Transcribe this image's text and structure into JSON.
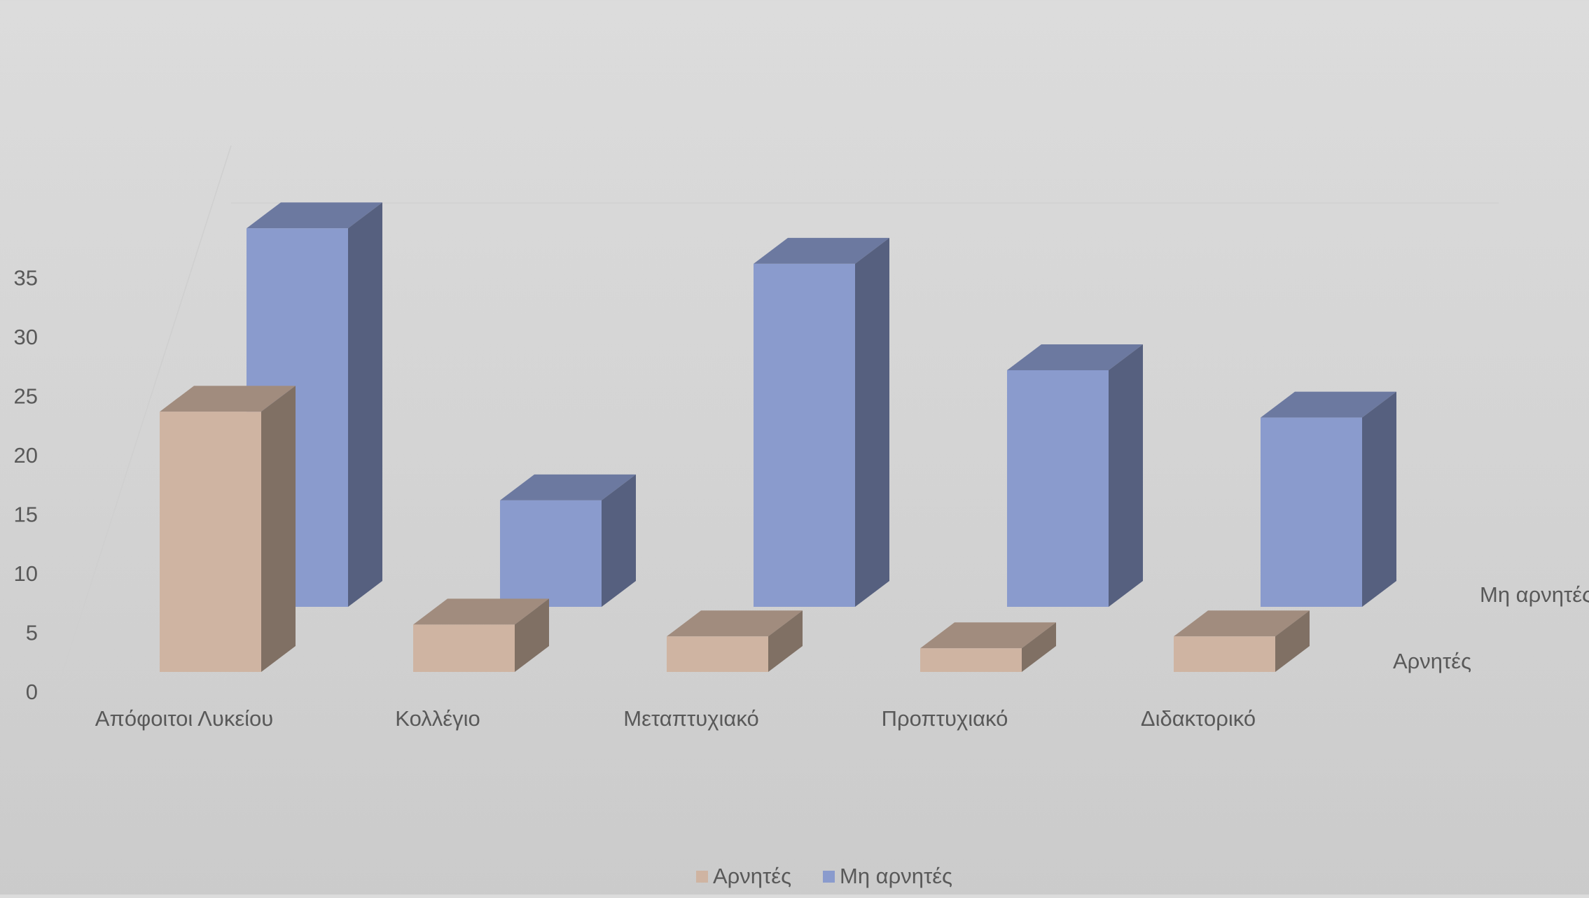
{
  "chart_data": {
    "type": "bar",
    "subtype": "3d-column",
    "title": "",
    "xlabel": "",
    "ylabel": "",
    "categories": [
      "Απόφοιτοι Λυκείου",
      "Κολλέγιο",
      "Μεταπτυχιακό",
      "Προπτυχιακό",
      "Διδακτορικό"
    ],
    "series": [
      {
        "name": "Αρνητές",
        "values": [
          22,
          4,
          3,
          2,
          3
        ],
        "color": "#cfb4a2"
      },
      {
        "name": "Μη αρνητές",
        "values": [
          32,
          9,
          29,
          20,
          16
        ],
        "color": "#8a9bcd"
      }
    ],
    "yticks": [
      0,
      5,
      10,
      15,
      20,
      25,
      30,
      35
    ],
    "ylim": [
      0,
      35
    ],
    "grid": true,
    "legend": {
      "position": "bottom"
    },
    "depth_axis_labels": [
      "Αρνητές",
      "Μη αρνητές"
    ]
  }
}
